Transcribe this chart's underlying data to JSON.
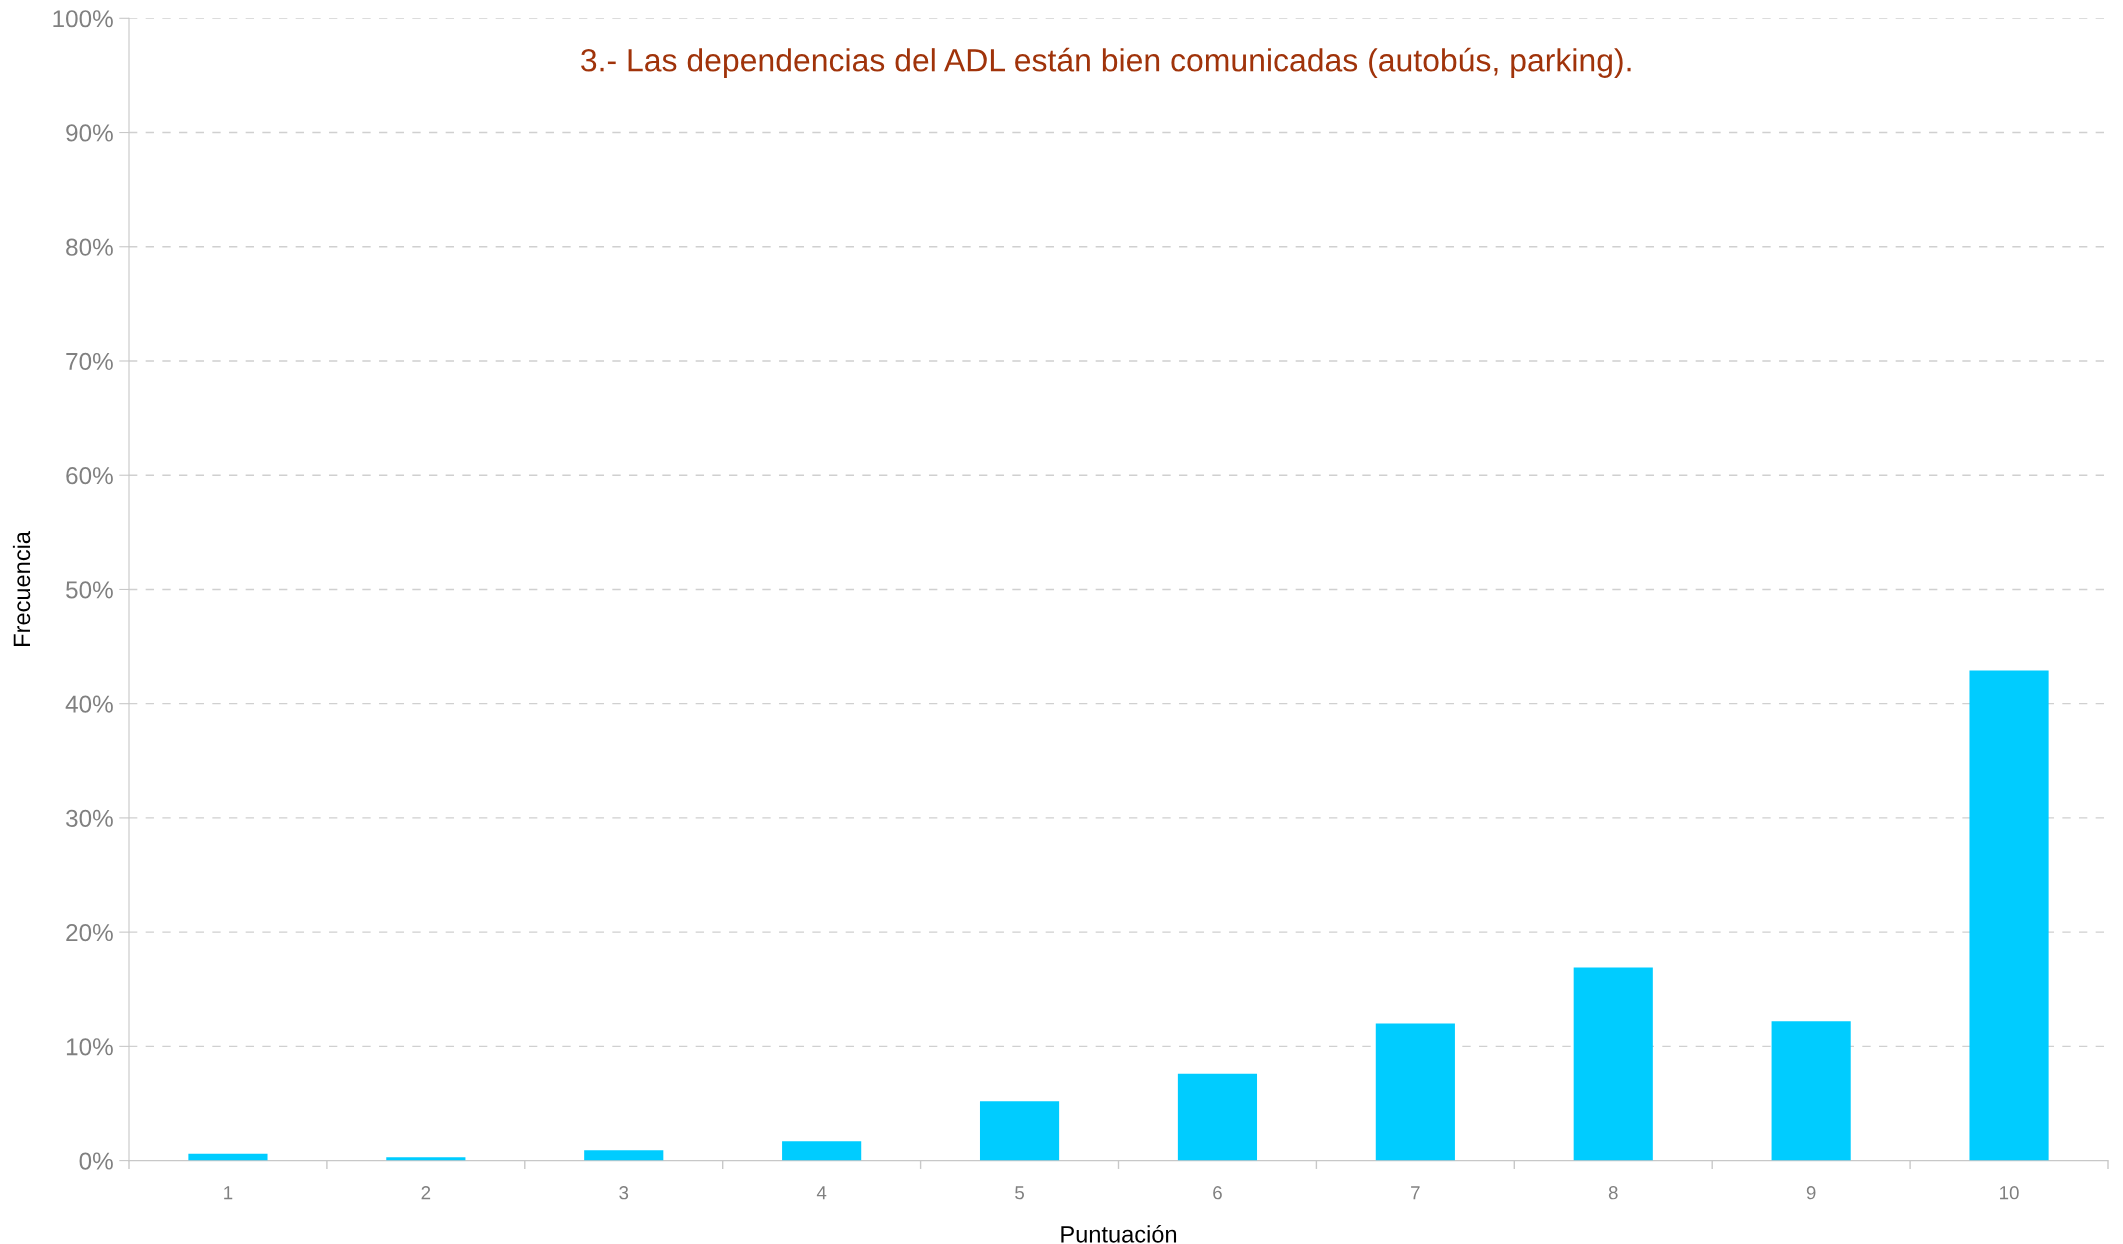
{
  "chart_data": {
    "type": "bar",
    "title": "3.- Las dependencias del ADL están bien comunicadas (autobús, parking).",
    "xlabel": "Puntuación",
    "ylabel": "Frecuencia",
    "categories": [
      "1",
      "2",
      "3",
      "4",
      "5",
      "6",
      "7",
      "8",
      "9",
      "10"
    ],
    "values": [
      0.6,
      0.3,
      0.9,
      1.7,
      5.2,
      7.6,
      12.0,
      16.9,
      12.2,
      42.9
    ],
    "color": "#00ccff",
    "ylim": [
      0,
      100
    ],
    "yticks": [
      {
        "value": 0,
        "label": "0%"
      },
      {
        "value": 10,
        "label": "10%"
      },
      {
        "value": 20,
        "label": "20%"
      },
      {
        "value": 30,
        "label": "30%"
      },
      {
        "value": 40,
        "label": "40%"
      },
      {
        "value": 50,
        "label": "50%"
      },
      {
        "value": 60,
        "label": "60%"
      },
      {
        "value": 70,
        "label": "70%"
      },
      {
        "value": 80,
        "label": "80%"
      },
      {
        "value": 90,
        "label": "90%"
      },
      {
        "value": 100,
        "label": "100%"
      }
    ],
    "grid": "y"
  }
}
